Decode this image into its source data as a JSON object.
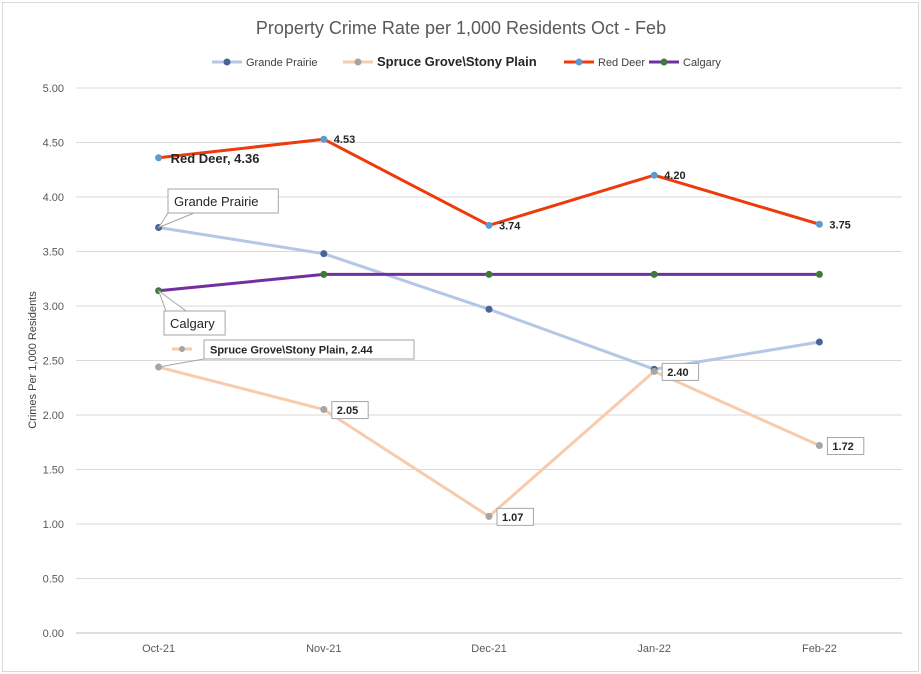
{
  "chart_data": {
    "type": "line",
    "title": "Property Crime Rate per 1,000 Residents Oct - Feb",
    "xlabel": "",
    "ylabel": "Crimes Per 1,000 Residents",
    "categories": [
      "Oct-21",
      "Nov-21",
      "Dec-21",
      "Jan-22",
      "Feb-22"
    ],
    "ylim": [
      0,
      5
    ],
    "yticks": [
      "0.00",
      "0.50",
      "1.00",
      "1.50",
      "2.00",
      "2.50",
      "3.00",
      "3.50",
      "4.00",
      "4.50",
      "5.00"
    ],
    "grid": "horizontal",
    "legend_position": "top",
    "series": [
      {
        "name": "Grande Prairie",
        "values": [
          3.72,
          3.48,
          2.97,
          2.42,
          2.67
        ],
        "line_color": "#b4c7e7",
        "marker_color": "#4a6497",
        "callout": "Grande Prairie",
        "data_labels": [
          "",
          "",
          "",
          "",
          ""
        ]
      },
      {
        "name": "Spruce Grove\\Stony Plain",
        "values": [
          2.44,
          2.05,
          1.07,
          2.4,
          1.72
        ],
        "line_color": "#f8cbad",
        "marker_color": "#a5a5a5",
        "callout": "Spruce Grove\\Stony Plain, 2.44",
        "data_labels": [
          "",
          "2.05",
          "1.07",
          "2.40",
          "1.72"
        ]
      },
      {
        "name": "Red Deer",
        "values": [
          4.36,
          4.53,
          3.74,
          4.2,
          3.75
        ],
        "line_color": "#ed3b0c",
        "marker_color": "#5b9bd5",
        "callout": "Red Deer, 4.36",
        "data_labels": [
          "",
          "4.53",
          "3.74",
          "4.20",
          "3.75"
        ]
      },
      {
        "name": "Calgary",
        "values": [
          3.14,
          3.29,
          3.29,
          3.29,
          3.29
        ],
        "line_color": "#7030a0",
        "marker_color": "#3e7a3a",
        "callout": "Calgary",
        "data_labels": [
          "",
          "",
          "",
          "",
          ""
        ]
      }
    ]
  }
}
